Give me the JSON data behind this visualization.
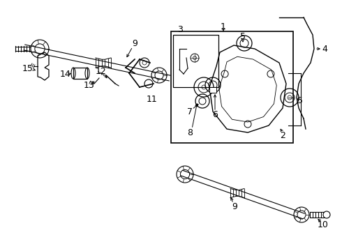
{
  "bg_color": "#ffffff",
  "line_color": "#000000",
  "fig_width": 4.9,
  "fig_height": 3.6,
  "dpi": 100
}
